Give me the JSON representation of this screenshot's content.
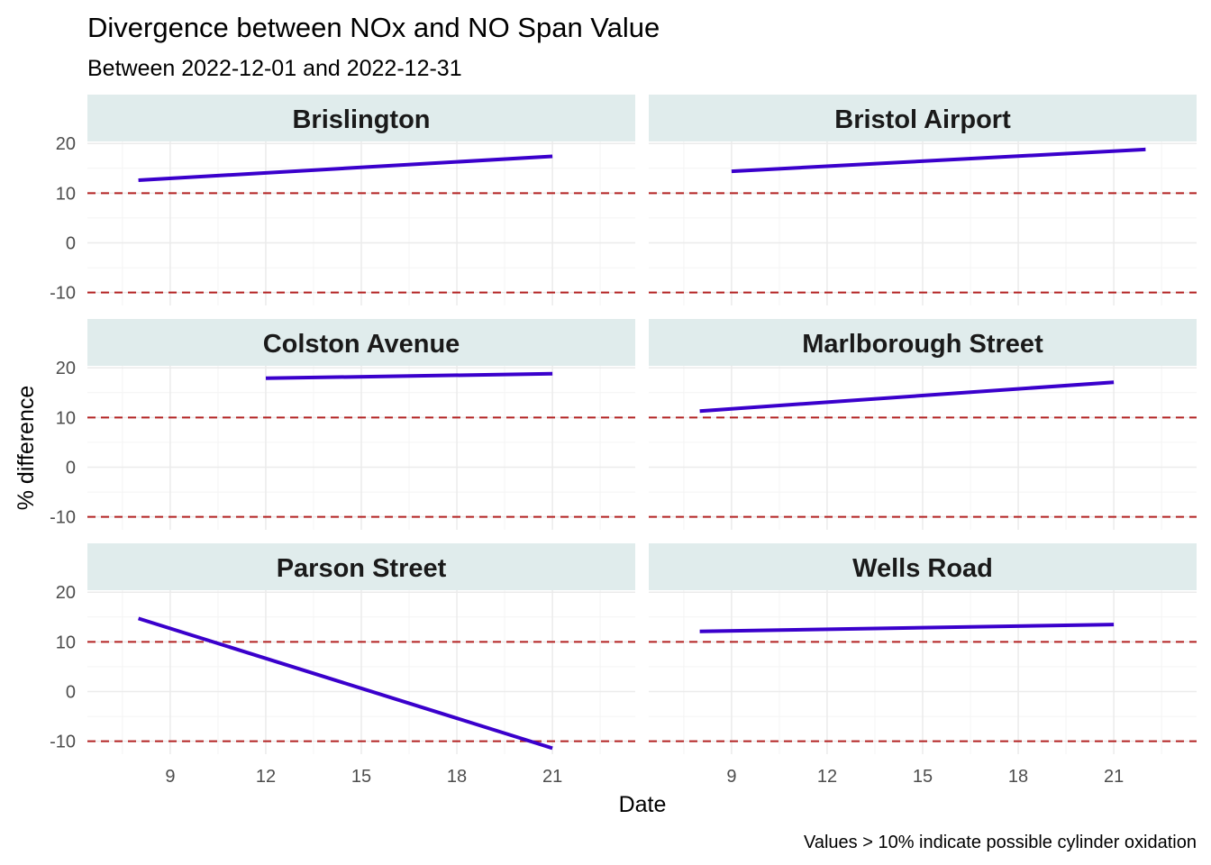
{
  "chart_data": {
    "type": "line",
    "title": "Divergence between NOx and NO Span Value",
    "subtitle": "Between 2022-12-01 and 2022-12-31",
    "xlabel": "Date",
    "ylabel": "% difference",
    "caption": "Values > 10% indicate possible cylinder oxidation",
    "x_ticks": [
      9,
      12,
      15,
      18,
      21
    ],
    "y_ticks": [
      20,
      10,
      0,
      -10
    ],
    "xlim": [
      6.4,
      23.6
    ],
    "ylim": [
      -12.6,
      20.4
    ],
    "thresholds": [
      10,
      -10
    ],
    "colors": {
      "line": "#3a00cc",
      "threshold": "#b22222",
      "strip_bg": "#e0ecec",
      "grid_major": "#ebebeb",
      "grid_minor": "#f4f4f4"
    },
    "panels": [
      {
        "name": "Brislington",
        "x": [
          8,
          21
        ],
        "y": [
          12.6,
          17.4
        ]
      },
      {
        "name": "Bristol Airport",
        "x": [
          9,
          22
        ],
        "y": [
          14.4,
          18.8
        ]
      },
      {
        "name": "Colston Avenue",
        "x": [
          12,
          21
        ],
        "y": [
          17.9,
          18.8
        ]
      },
      {
        "name": "Marlborough Street",
        "x": [
          8,
          21
        ],
        "y": [
          11.3,
          17.1
        ]
      },
      {
        "name": "Parson Street",
        "x": [
          8,
          21
        ],
        "y": [
          14.7,
          -11.4
        ]
      },
      {
        "name": "Wells Road",
        "x": [
          8,
          21
        ],
        "y": [
          12.1,
          13.5
        ]
      }
    ]
  }
}
